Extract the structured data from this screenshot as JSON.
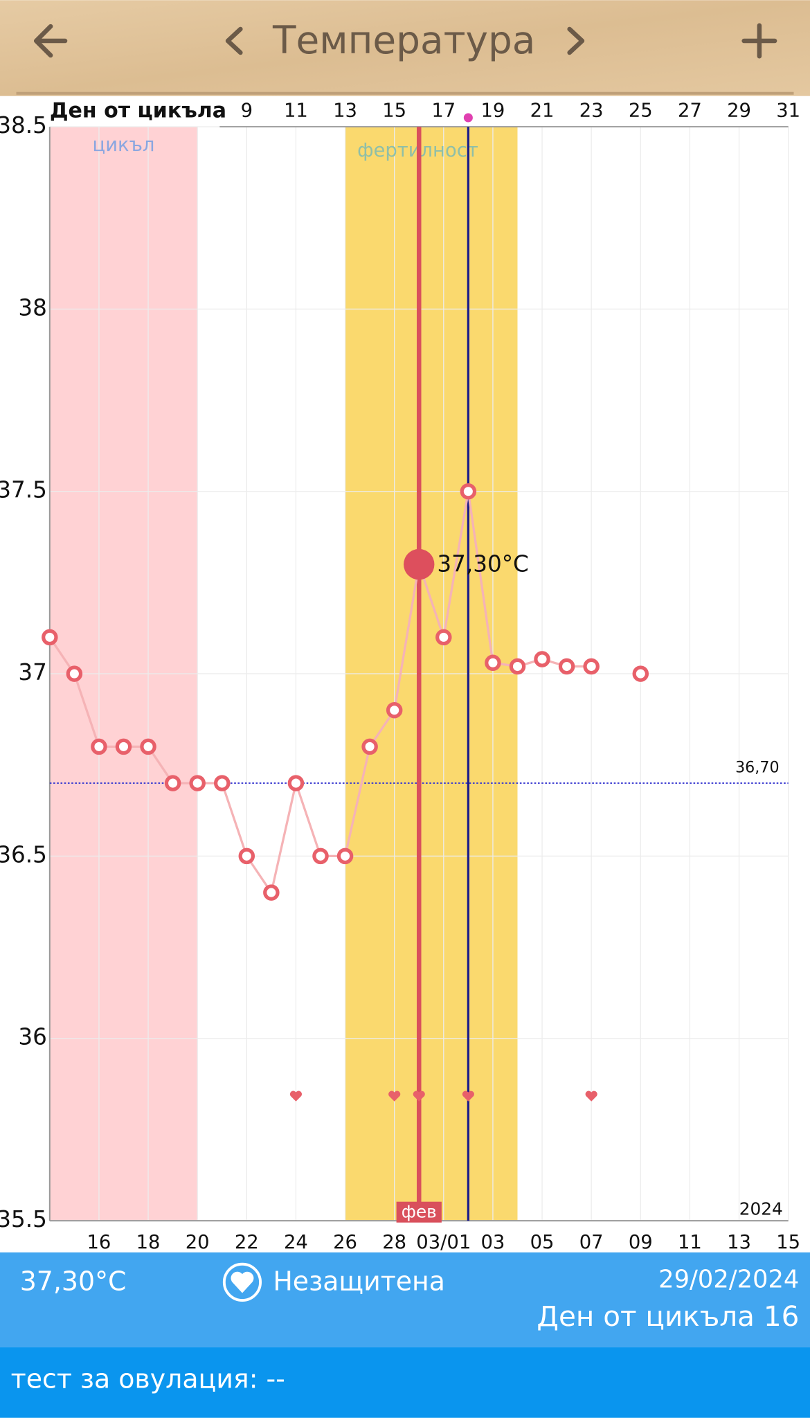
{
  "header": {
    "title": "Температура"
  },
  "chart_data": {
    "type": "line",
    "x_axis_title": "Ден от цикъла",
    "year_label": "2024",
    "categories": [
      null,
      null,
      "16",
      null,
      "18",
      null,
      "20",
      null,
      "22",
      null,
      "24",
      null,
      "26",
      null,
      "28",
      null,
      "03/01",
      null,
      "03",
      null,
      "05",
      null,
      "07",
      null,
      "09",
      null,
      "11",
      null,
      "13",
      null,
      "15"
    ],
    "cycle_days": [
      null,
      null,
      null,
      null,
      null,
      null,
      null,
      null,
      9,
      null,
      11,
      null,
      13,
      null,
      15,
      null,
      17,
      null,
      19,
      null,
      21,
      null,
      23,
      null,
      25,
      null,
      27,
      null,
      29,
      null,
      31
    ],
    "series": [
      {
        "color": "#e8606a",
        "line_color": "#f5b3b6",
        "values": [
          37.1,
          37.0,
          36.8,
          36.8,
          36.8,
          36.7,
          36.7,
          36.7,
          36.5,
          36.4,
          36.7,
          36.5,
          36.5,
          36.8,
          36.9,
          37.3,
          37.1,
          37.5,
          37.03,
          37.02,
          37.04,
          37.02,
          37.02,
          null,
          37.0,
          null,
          null,
          null,
          null,
          null,
          null
        ],
        "value_labels": [
          null,
          null,
          null,
          null,
          null,
          null,
          null,
          null,
          null,
          null,
          null,
          null,
          null,
          null,
          null,
          "37,30°C",
          null,
          null,
          null,
          null,
          null,
          null,
          null,
          null,
          null,
          null,
          null,
          null,
          null,
          null,
          null
        ]
      }
    ],
    "ylim": [
      35.5,
      38.5
    ],
    "yticks": [
      35.5,
      36,
      36.5,
      37,
      37.5,
      38,
      38.5
    ],
    "grid": true,
    "reference_line": {
      "value": 36.7,
      "label": "36,70",
      "color": "#3a3ad0"
    },
    "bands": [
      {
        "label": "цикъл",
        "from": 0,
        "to": 6,
        "color": "#ffd2d4",
        "label_color": "#8aa6e0"
      },
      {
        "label": "фертилност",
        "from": 12,
        "to": 19,
        "color": "#fad96e",
        "label_color": "#8fbfa8"
      }
    ],
    "markers": [
      {
        "index": 15,
        "color": "#d9505c",
        "label": "фев"
      },
      {
        "index": 17,
        "color": "#1c1c8a",
        "top_dot_color": "#e040b0"
      }
    ],
    "hearts": [
      10,
      14,
      15,
      17,
      22
    ]
  },
  "footer": {
    "temperature": "37,30°C",
    "protection": "Незащитена",
    "date": "29/02/2024",
    "cycle_day": "Ден от цикъла 16",
    "ovulation_test": "тест за овулация: --"
  }
}
